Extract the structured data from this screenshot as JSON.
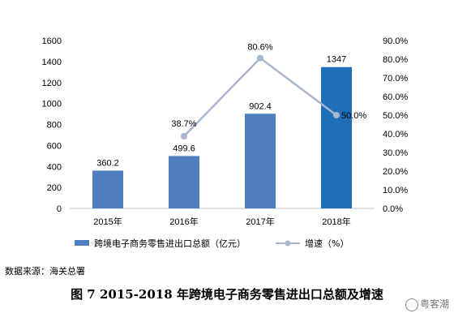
{
  "chart_data": {
    "type": "bar",
    "categories": [
      "2015年",
      "2016年",
      "2017年",
      "2018年"
    ],
    "series": [
      {
        "name": "跨境电子商务零售进出口总额（亿元）",
        "type": "bar",
        "axis": "left",
        "values": [
          360.2,
          499.6,
          902.4,
          1347
        ],
        "labels": [
          "360.2",
          "499.6",
          "902.4",
          "1347"
        ]
      },
      {
        "name": "增速（%）",
        "type": "line",
        "axis": "right",
        "values": [
          null,
          38.7,
          80.6,
          50.0
        ],
        "labels": [
          "",
          "38.7%",
          "80.6%",
          "50.0%"
        ]
      }
    ],
    "left_axis": {
      "min": 0,
      "max": 1600,
      "step": 200,
      "ticks": [
        "0",
        "200",
        "400",
        "600",
        "800",
        "1000",
        "1200",
        "1400",
        "1600"
      ]
    },
    "right_axis": {
      "min": 0,
      "max": 90,
      "step": 10,
      "ticks": [
        "0.0%",
        "10.0%",
        "20.0%",
        "30.0%",
        "40.0%",
        "50.0%",
        "60.0%",
        "70.0%",
        "80.0%",
        "90.0%"
      ]
    },
    "grid": false,
    "legend_position": "bottom",
    "colors": {
      "bar": "#4f7fbf",
      "bar_highlight": "#1f6fb8",
      "line": "#a8b6cc"
    }
  },
  "source": "数据来源：海关总署",
  "caption": "图 7 2015-2018 年跨境电子商务零售进出口总额及增速",
  "watermark": "粤客潮"
}
